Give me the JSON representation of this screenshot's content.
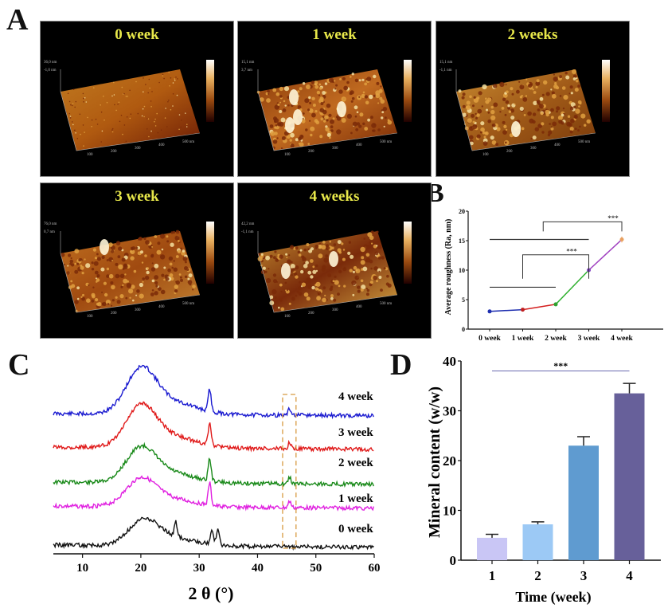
{
  "panel_labels": {
    "a": "A",
    "b": "B",
    "c": "C",
    "d": "D"
  },
  "afm_panels": [
    {
      "title": "0 week",
      "z_max": "36,0 nm",
      "z_min": "-1,0 nm"
    },
    {
      "title": "1 week",
      "z_max": "15,1 nm",
      "z_min": "3,7 nm"
    },
    {
      "title": "2 weeks",
      "z_max": "15,1 nm",
      "z_min": "-1,1 nm"
    },
    {
      "title": "3 week",
      "z_max": "76,0 nm",
      "z_min": "0,7 nm"
    },
    {
      "title": "4 weeks",
      "z_max": "42,2 nm",
      "z_min": "-1,1 nm"
    }
  ],
  "afm_axis_ticks": [
    "100",
    "200",
    "300",
    "400",
    "500 nm"
  ],
  "colors": {
    "afm_title": "#e8e84a",
    "b_line": [
      "#1f2fb0",
      "#d42020",
      "#2fb02f",
      "#a040c0"
    ],
    "d_bars": [
      "#c9c6f5",
      "#9cc9f5",
      "#5f9bd0",
      "#67609a"
    ]
  },
  "chart_data": [
    {
      "id": "B",
      "type": "line",
      "title": "",
      "xlabel": "",
      "ylabel": "Average roughness (Ra, nm)",
      "categories": [
        "0 week",
        "1 week",
        "2 week",
        "3 week",
        "4 week"
      ],
      "values": [
        3.0,
        3.3,
        4.2,
        10.0,
        15.2
      ],
      "errors": [
        0.1,
        0.2,
        0.15,
        0.2,
        0.5
      ],
      "ylim": [
        0,
        20
      ],
      "yticks": [
        "0",
        "5",
        "10",
        "15",
        "20"
      ],
      "significance": [
        {
          "label": "***",
          "group_span": [
            "0 week",
            "2 week"
          ],
          "vs": "3 week"
        },
        {
          "label": "***",
          "group_span": [
            "0 week",
            "3 week"
          ],
          "vs": "4 week"
        }
      ]
    },
    {
      "id": "C",
      "type": "line",
      "title": "",
      "xlabel": "2 θ (°)",
      "ylabel": "",
      "xlim": [
        5,
        60
      ],
      "xticks": [
        "10",
        "20",
        "30",
        "40",
        "50",
        "60"
      ],
      "series": [
        {
          "name": "4 week",
          "color": "#1a1ad0",
          "broad_peak_deg": 20,
          "sharp_peaks_deg": [
            31.8,
            45.5
          ]
        },
        {
          "name": "3 week",
          "color": "#e01a1a",
          "broad_peak_deg": 20,
          "sharp_peaks_deg": [
            31.8,
            45.5
          ]
        },
        {
          "name": "2 week",
          "color": "#1a8a1a",
          "broad_peak_deg": 20,
          "sharp_peaks_deg": [
            31.8,
            45.5
          ]
        },
        {
          "name": "1 week",
          "color": "#e020e0",
          "broad_peak_deg": 20,
          "sharp_peaks_deg": [
            31.8,
            45.5
          ]
        },
        {
          "name": "0 week",
          "color": "#111111",
          "broad_peak_deg": 20.5,
          "sharp_peaks_deg": [
            26,
            32.2,
            33.2
          ]
        }
      ],
      "annotation": "dashed box around 45.5°"
    },
    {
      "id": "D",
      "type": "bar",
      "title": "",
      "xlabel": "Time (week)",
      "ylabel": "Mineral content (w/w)",
      "categories": [
        "1",
        "2",
        "3",
        "4"
      ],
      "values": [
        4.5,
        7.2,
        23.0,
        33.5
      ],
      "errors": [
        0.7,
        0.5,
        1.8,
        2.0
      ],
      "ylim": [
        0,
        40
      ],
      "yticks": [
        "0",
        "10",
        "20",
        "30",
        "40"
      ],
      "significance": [
        {
          "label": "***",
          "span": [
            "1",
            "4"
          ]
        }
      ]
    }
  ]
}
